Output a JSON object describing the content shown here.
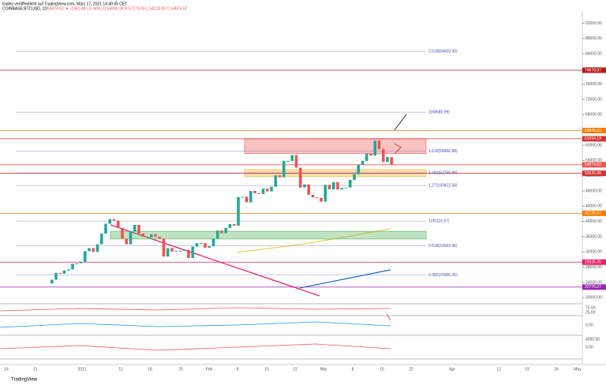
{
  "header": {
    "publisher": "lsulley veröffentlicht auf TradingView.com, März 17, 2021 14:40:45 CET",
    "symbol": "COINBASE:BTCUSD, 1D",
    "quote": "54874.62 ▼ -1952.48 (-3.44%) O:56836.34 H:57179.00 L:54218.00 C:54874.62"
  },
  "footer": {
    "brand": "TradingView"
  },
  "chart_data": {
    "type": "candlestick",
    "ylim": [
      18400,
      95000
    ],
    "yticks": [
      {
        "value": 20000,
        "label": "20000.00"
      },
      {
        "value": 24000,
        "label": "24000.00"
      },
      {
        "value": 28000,
        "label": "28000.00"
      },
      {
        "value": 32000,
        "label": "32000.00"
      },
      {
        "value": 36000,
        "label": "36000.00"
      },
      {
        "value": 40000,
        "label": "40000.00"
      },
      {
        "value": 44000,
        "label": "44000.00"
      },
      {
        "value": 48000,
        "label": "48000.00"
      },
      {
        "value": 52000,
        "label": "52000.00"
      },
      {
        "value": 56000,
        "label": "56000.00"
      },
      {
        "value": 60000,
        "label": "60000.00"
      },
      {
        "value": 64000,
        "label": "64000.00"
      },
      {
        "value": 68000,
        "label": "68000.00"
      },
      {
        "value": 72000,
        "label": "72000.00"
      },
      {
        "value": 76000,
        "label": "76000.00"
      },
      {
        "value": 80000,
        "label": "80000.00"
      },
      {
        "value": 84000,
        "label": "84000.00"
      },
      {
        "value": 88000,
        "label": "88000.00"
      },
      {
        "value": 92000,
        "label": "92000.00"
      }
    ],
    "xticks": [
      "14",
      "21",
      "2021",
      "11",
      "18",
      "25",
      "Feb",
      "8",
      "15",
      "22",
      "Mar",
      "8",
      "15",
      "22",
      "Apr",
      "12",
      "19",
      "26",
      "May"
    ],
    "open": [
      23700,
      24700,
      26500,
      26300,
      27100,
      27400,
      28900,
      29000,
      29400,
      32200,
      33000,
      32000,
      34000,
      36800,
      39400,
      40600,
      40200,
      38300,
      35500,
      34000,
      37400,
      39100,
      36800,
      36000,
      35800,
      36600,
      36000,
      35500,
      30800,
      33000,
      32100,
      32300,
      32300,
      32500,
      30400,
      33400,
      34300,
      34300,
      33100,
      33500,
      35500,
      37600,
      36900,
      38300,
      39300,
      38900,
      46400,
      46500,
      45000,
      48000,
      47400,
      47200,
      48600,
      47900,
      49100,
      52100,
      51600,
      55900,
      55900,
      57400,
      54100,
      48900,
      49700,
      47000,
      46300,
      46200,
      45200,
      49600,
      48400,
      50300,
      48400,
      48800,
      48900,
      50900,
      52400,
      54900,
      55900,
      57800,
      57300,
      61200,
      59000,
      55600,
      56836.34
    ],
    "close": [
      24700,
      26500,
      26300,
      27100,
      27400,
      28900,
      29000,
      29400,
      32200,
      33000,
      32000,
      34000,
      36800,
      39400,
      40600,
      40200,
      38300,
      35500,
      34000,
      37400,
      39100,
      36800,
      36000,
      35800,
      36600,
      36000,
      35500,
      30800,
      33000,
      32100,
      32300,
      32300,
      32500,
      30400,
      33400,
      34300,
      34300,
      33100,
      33500,
      35500,
      37600,
      36900,
      38300,
      39300,
      38900,
      46400,
      46500,
      45000,
      48000,
      47400,
      47200,
      48600,
      47900,
      49100,
      52100,
      51600,
      55900,
      55900,
      57400,
      54100,
      48900,
      49700,
      47000,
      46300,
      46200,
      45200,
      49600,
      48400,
      50300,
      48400,
      48800,
      48900,
      50900,
      52400,
      54900,
      55900,
      57800,
      57300,
      61200,
      59000,
      55600,
      56900,
      54874.62
    ],
    "up_color": "#26a69a",
    "down_color": "#ef5350",
    "zones": [
      {
        "low": 57800,
        "high": 61694.19,
        "color": "#ef5350"
      },
      {
        "low": 51800,
        "high": 53600,
        "color": "#f5a623"
      },
      {
        "low": 35400,
        "high": 37400,
        "color": "#4caf50"
      }
    ],
    "levels": [
      {
        "value": 79678.87,
        "label": "79678.87",
        "color": "#b71c1c"
      },
      {
        "value": 63844.21,
        "label": "63844.21",
        "color": "#f57c00"
      },
      {
        "value": 61694.19,
        "label": "61694.19",
        "color": "#d32f2f"
      },
      {
        "value": 54874.62,
        "label": "54874.62",
        "color": "#ef5350"
      },
      {
        "value": 52626.98,
        "label": "52626.98",
        "color": "#d32f2f"
      },
      {
        "value": 42136.57,
        "label": "42136.57",
        "color": "#f57c00"
      },
      {
        "value": 29326.35,
        "label": "29326.35",
        "color": "#e91e63"
      },
      {
        "value": 22776.27,
        "label": "22776.27",
        "color": "#9c27b0"
      }
    ],
    "fibs": [
      {
        "value": 84603.3,
        "label": "2.618(84603.30)"
      },
      {
        "value": 68680.99,
        "label": "2(68680.99)"
      },
      {
        "value": 58466.88,
        "label": "1.618(58466.88)"
      },
      {
        "value": 52750.96,
        "label": "1.382(52750.96)"
      },
      {
        "value": 49422.58,
        "label": "1.272(49422.58)"
      },
      {
        "value": 40116.57,
        "label": "1(40116.57)"
      },
      {
        "value": 33593.46,
        "label": "0.618(33593.46)"
      },
      {
        "value": 25906.35,
        "label": "0.382(25906.35)"
      }
    ],
    "panels": [
      [
        "75.00",
        "25.00"
      ],
      [
        "0.00"
      ],
      [
        "4000.00",
        "0.00"
      ]
    ]
  }
}
